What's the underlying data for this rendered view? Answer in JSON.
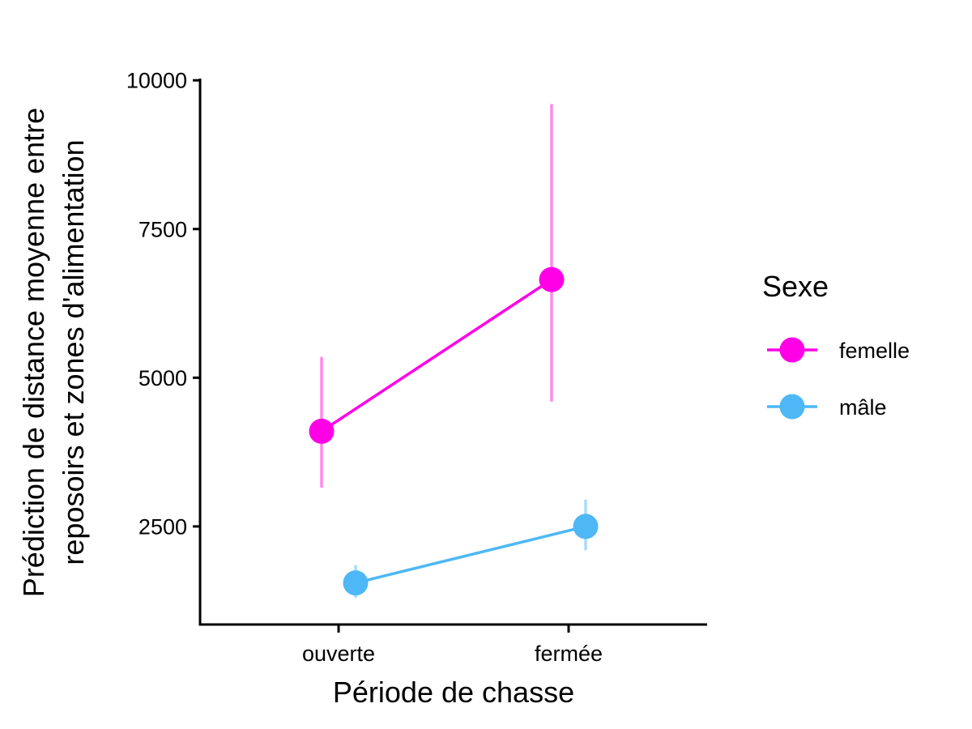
{
  "chart_data": {
    "type": "scatter",
    "title": "",
    "xlabel": "Période de chasse",
    "ylabel_lines": [
      "Prédiction de distance moyenne entre",
      "reposoirs et zones d'alimentation"
    ],
    "categories": [
      "ouverte",
      "fermée"
    ],
    "y_ticks": [
      2500,
      5000,
      7500,
      10000
    ],
    "y_tick_labels": [
      "2500",
      "5000",
      "7500",
      "10000"
    ],
    "ylim": [
      900,
      10000
    ],
    "legend": {
      "title": "Sexe",
      "position": "right"
    },
    "grid": false,
    "series": [
      {
        "name": "femelle",
        "color": "#ff00e6",
        "error_color": "#ff88ee",
        "points": [
          {
            "category": "ouverte",
            "y": 4100,
            "ymin": 3150,
            "ymax": 5350
          },
          {
            "category": "fermée",
            "y": 6650,
            "ymin": 4600,
            "ymax": 9600
          }
        ]
      },
      {
        "name": "mâle",
        "color": "#4db8f5",
        "error_color": "#a8dcf5",
        "points": [
          {
            "category": "ouverte",
            "y": 1550,
            "ymin": 1300,
            "ymax": 1850
          },
          {
            "category": "fermée",
            "y": 2500,
            "ymin": 2100,
            "ymax": 2950
          }
        ]
      }
    ]
  }
}
